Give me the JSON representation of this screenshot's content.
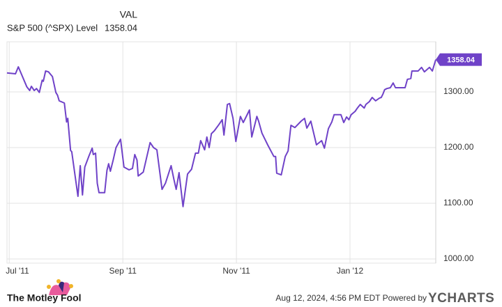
{
  "chart_data": {
    "type": "line",
    "value_header": "VAL",
    "x": [
      -0.04,
      0.11,
      0.16,
      0.31,
      0.36,
      0.39,
      0.44,
      0.48,
      0.53,
      0.58,
      0.6,
      0.64,
      0.69,
      0.76,
      0.82,
      0.85,
      0.88,
      0.97,
      1.01,
      1.03,
      1.08,
      1.1,
      1.21,
      1.25,
      1.29,
      1.33,
      1.4,
      1.46,
      1.48,
      1.52,
      1.55,
      1.58,
      1.68,
      1.72,
      1.75,
      1.78,
      1.83,
      1.88,
      1.96,
      2.02,
      2.11,
      2.17,
      2.21,
      2.25,
      2.27,
      2.36,
      2.48,
      2.54,
      2.6,
      2.69,
      2.75,
      2.85,
      2.9,
      2.94,
      2.99,
      3.06,
      3.14,
      3.21,
      3.28,
      3.33,
      3.37,
      3.44,
      3.48,
      3.52,
      3.56,
      3.61,
      3.69,
      3.75,
      3.78,
      3.84,
      3.88,
      3.94,
      3.99,
      4.07,
      4.12,
      4.17,
      4.23,
      4.27,
      4.36,
      4.39,
      4.45,
      4.55,
      4.66,
      4.69,
      4.71,
      4.79,
      4.86,
      4.91,
      4.96,
      5.03,
      5.14,
      5.2,
      5.24,
      5.31,
      5.41,
      5.5,
      5.55,
      5.62,
      5.68,
      5.72,
      5.79,
      5.84,
      5.89,
      5.94,
      5.98,
      6.02,
      6.09,
      6.13,
      6.18,
      6.25,
      6.28,
      6.34,
      6.39,
      6.45,
      6.52,
      6.55,
      6.58,
      6.61,
      6.65,
      6.71,
      6.76,
      6.8,
      6.86,
      6.97,
      7.01,
      7.07,
      7.09,
      7.17,
      7.2,
      7.26,
      7.31,
      7.4,
      7.45,
      7.51
    ],
    "series": [
      {
        "name": "S&P 500 (^SPX) Level",
        "color": "#6f42c8",
        "values": [
          1334,
          1332.5,
          1345,
          1309,
          1302.5,
          1310,
          1302.5,
          1306,
          1299,
          1321,
          1319,
          1337.5,
          1336,
          1327.5,
          1299,
          1294,
          1284,
          1280,
          1246,
          1252.5,
          1195,
          1192.5,
          1112.5,
          1167.5,
          1115,
          1165,
          1184,
          1199,
          1187.5,
          1190,
          1136,
          1119,
          1119,
          1159,
          1171,
          1157.5,
          1177.5,
          1200,
          1215,
          1165,
          1160,
          1162.5,
          1187.5,
          1177.5,
          1149,
          1156,
          1209,
          1200,
          1196,
          1125,
          1136,
          1167.5,
          1142.5,
          1125,
          1155,
          1094,
          1152.5,
          1161,
          1190,
          1190,
          1212.5,
          1196,
          1219,
          1200,
          1225,
          1230,
          1241,
          1250,
          1222.5,
          1277.5,
          1279,
          1252.5,
          1211,
          1256,
          1245,
          1255,
          1267.5,
          1219,
          1256,
          1247.5,
          1226,
          1205,
          1184,
          1184,
          1154,
          1151,
          1184,
          1194,
          1240,
          1236,
          1247.5,
          1252.5,
          1235,
          1247.5,
          1205,
          1212.5,
          1199,
          1234,
          1246,
          1259,
          1259,
          1259,
          1245,
          1255,
          1250,
          1259,
          1265,
          1271,
          1277.5,
          1271,
          1277.5,
          1282.5,
          1290,
          1284,
          1289,
          1290,
          1296,
          1304,
          1306,
          1307.5,
          1316,
          1307.5,
          1307.5,
          1307.5,
          1322.5,
          1324,
          1337.5,
          1337.5,
          1337.5,
          1344,
          1336,
          1344,
          1337.5,
          1358.04
        ]
      }
    ],
    "xlim": [
      -0.04,
      7.51
    ],
    "xticks": [
      {
        "value": 0,
        "label": "Jul '11"
      },
      {
        "value": 2,
        "label": "Sep '11"
      },
      {
        "value": 4,
        "label": "Nov '11"
      },
      {
        "value": 6,
        "label": "Jan '12"
      }
    ],
    "ylim": [
      992.5,
      1390
    ],
    "yticks": [
      {
        "value": 1000,
        "label": "1000.00"
      },
      {
        "value": 1100,
        "label": "1100.00"
      },
      {
        "value": 1200,
        "label": "1200.00"
      },
      {
        "value": 1300,
        "label": "1300.00"
      }
    ],
    "grid": true
  },
  "footer": {
    "brand": "The Motley Fool",
    "timestamp": "Aug 12, 2024, 4:56 PM EDT Powered by",
    "provider": "YCHARTS"
  }
}
